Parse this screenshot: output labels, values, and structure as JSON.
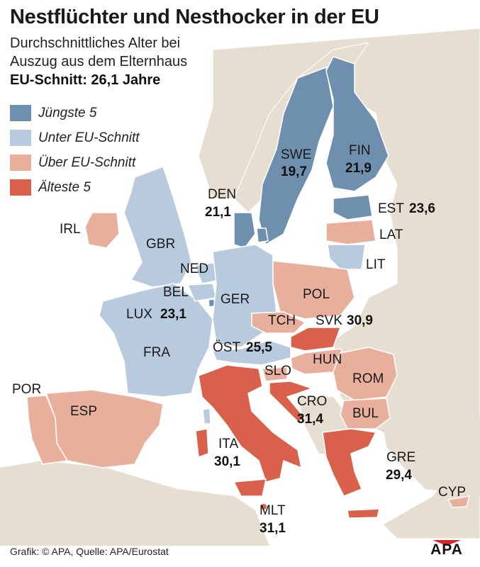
{
  "header": {
    "title": "Nestflüchter und Nesthocker in der EU",
    "subtitle_line1": "Durchschnittliches Alter bei",
    "subtitle_line2": "Auszug aus dem Elternhaus",
    "eu_average": "EU-Schnitt: 26,1 Jahre"
  },
  "legend": [
    {
      "label": "Jüngste 5",
      "color": "#6f8fae"
    },
    {
      "label": "Unter EU-Schnitt",
      "color": "#b8cade"
    },
    {
      "label": "Über EU-Schnitt",
      "color": "#e8b09c"
    },
    {
      "label": "Älteste 5",
      "color": "#d9604a"
    }
  ],
  "countries": {
    "swe": {
      "code": "SWE",
      "age": "19,7",
      "category": "Jüngste 5"
    },
    "fin": {
      "code": "FIN",
      "age": "21,9",
      "category": "Jüngste 5"
    },
    "den": {
      "code": "DEN",
      "age": "21,1",
      "category": "Jüngste 5"
    },
    "est": {
      "code": "EST",
      "age": "23,6",
      "category": "Jüngste 5"
    },
    "lux": {
      "code": "LUX",
      "age": "23,1",
      "category": "Jüngste 5"
    },
    "lat": {
      "code": "LAT",
      "category": "Über EU-Schnitt"
    },
    "lit": {
      "code": "LIT",
      "category": "Unter EU-Schnitt"
    },
    "irl": {
      "code": "IRL",
      "category": "Über EU-Schnitt"
    },
    "gbr": {
      "code": "GBR",
      "category": "Unter EU-Schnitt"
    },
    "ned": {
      "code": "NED",
      "category": "Unter EU-Schnitt"
    },
    "bel": {
      "code": "BEL",
      "category": "Unter EU-Schnitt"
    },
    "ger": {
      "code": "GER",
      "category": "Unter EU-Schnitt"
    },
    "fra": {
      "code": "FRA",
      "category": "Unter EU-Schnitt"
    },
    "pol": {
      "code": "POL",
      "category": "Über EU-Schnitt"
    },
    "tch": {
      "code": "TCH",
      "category": "Über EU-Schnitt"
    },
    "svk": {
      "code": "SVK",
      "age": "30,9",
      "category": "Älteste 5"
    },
    "ost": {
      "code": "ÖST",
      "age": "25,5",
      "category": "Unter EU-Schnitt"
    },
    "slo": {
      "code": "SLO",
      "category": "Über EU-Schnitt"
    },
    "hun": {
      "code": "HUN",
      "category": "Über EU-Schnitt"
    },
    "rom": {
      "code": "ROM",
      "category": "Über EU-Schnitt"
    },
    "cro": {
      "code": "CRO",
      "age": "31,4",
      "category": "Älteste 5"
    },
    "bul": {
      "code": "BUL",
      "category": "Über EU-Schnitt"
    },
    "por": {
      "code": "POR",
      "category": "Über EU-Schnitt"
    },
    "esp": {
      "code": "ESP",
      "category": "Über EU-Schnitt"
    },
    "ita": {
      "code": "ITA",
      "age": "30,1",
      "category": "Älteste 5"
    },
    "gre": {
      "code": "GRE",
      "age": "29,4",
      "category": "Älteste 5"
    },
    "mlt": {
      "code": "MLT",
      "age": "31,1",
      "category": "Älteste 5"
    },
    "cyp": {
      "code": "CYP",
      "category": "Über EU-Schnitt"
    }
  },
  "colors": {
    "background": "#ece6db",
    "non_eu_land": "#e6ded0",
    "sea": "#ffffff",
    "darkest": "#6f8fae",
    "light_blue": "#b8cade",
    "light_red": "#e8b09c",
    "dark_red": "#d9604a",
    "logo_red": "#d8232a"
  },
  "footer": {
    "source": "Grafik: © APA, Quelle: APA/Eurostat"
  },
  "logo": {
    "text": "APA"
  }
}
